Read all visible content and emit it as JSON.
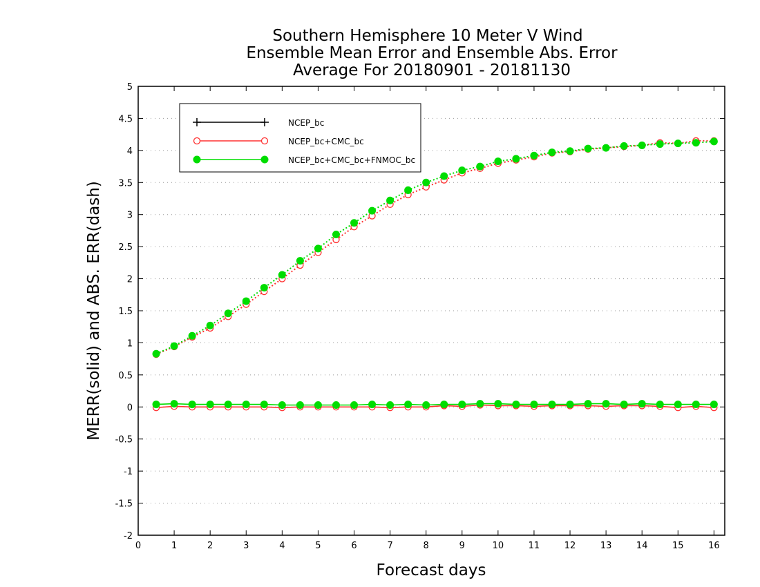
{
  "chart_data": {
    "type": "line",
    "title": [
      "Southern Hemisphere 10 Meter V Wind",
      "Ensemble Mean Error and Ensemble Abs. Error",
      "Average For 20180901 - 20181130"
    ],
    "xlabel": "Forecast days",
    "ylabel": "MERR(solid) and ABS. ERR(dash)",
    "xlim": [
      0,
      16.3
    ],
    "ylim": [
      -2,
      5
    ],
    "xticks": [
      "0",
      "1",
      "2",
      "3",
      "4",
      "5",
      "6",
      "7",
      "8",
      "9",
      "10",
      "11",
      "12",
      "13",
      "14",
      "15",
      "16"
    ],
    "yticks": [
      "5",
      "4.5",
      "4",
      "3.5",
      "3",
      "2.5",
      "2",
      "1.5",
      "1",
      "0.5",
      "0",
      "-0.5",
      "-1",
      "-1.5",
      "-2"
    ],
    "grid": true,
    "legend_position": "top-left",
    "x": [
      0.5,
      1,
      1.5,
      2,
      2.5,
      3,
      3.5,
      4,
      4.5,
      5,
      5.5,
      6,
      6.5,
      7,
      7.5,
      8,
      8.5,
      9,
      9.5,
      10,
      10.5,
      11,
      11.5,
      12,
      12.5,
      13,
      13.5,
      14,
      14.5,
      15,
      15.5,
      16
    ],
    "series": [
      {
        "name": "NCEP_bc",
        "color": "#000000",
        "marker": "plus",
        "merr": [],
        "abserr": []
      },
      {
        "name": "NCEP_bc+CMC_bc",
        "color": "#ff3030",
        "marker": "open-circle",
        "merr": [
          -0.01,
          0.01,
          0.0,
          0.0,
          0.0,
          0.0,
          0.0,
          -0.01,
          0.0,
          0.0,
          0.0,
          0.0,
          0.0,
          -0.01,
          0.0,
          0.0,
          0.02,
          0.01,
          0.03,
          0.02,
          0.02,
          0.01,
          0.02,
          0.02,
          0.02,
          0.01,
          0.02,
          0.02,
          0.01,
          -0.01,
          0.01,
          -0.01
        ],
        "abserr": [
          0.82,
          0.94,
          1.09,
          1.23,
          1.41,
          1.6,
          1.8,
          2.0,
          2.21,
          2.41,
          2.61,
          2.81,
          2.98,
          3.16,
          3.31,
          3.43,
          3.54,
          3.65,
          3.72,
          3.8,
          3.85,
          3.9,
          3.96,
          3.98,
          4.02,
          4.04,
          4.06,
          4.08,
          4.12,
          4.11,
          4.15,
          4.15
        ]
      },
      {
        "name": "NCEP_bc+CMC_bc+FNMOC_bc",
        "color": "#00dd00",
        "marker": "filled-circle",
        "merr": [
          0.04,
          0.05,
          0.04,
          0.04,
          0.04,
          0.04,
          0.04,
          0.03,
          0.03,
          0.03,
          0.03,
          0.03,
          0.04,
          0.03,
          0.04,
          0.03,
          0.04,
          0.04,
          0.05,
          0.05,
          0.04,
          0.04,
          0.04,
          0.04,
          0.05,
          0.05,
          0.04,
          0.05,
          0.04,
          0.04,
          0.04,
          0.04
        ],
        "abserr": [
          0.83,
          0.95,
          1.11,
          1.27,
          1.46,
          1.65,
          1.86,
          2.06,
          2.28,
          2.47,
          2.69,
          2.87,
          3.06,
          3.22,
          3.38,
          3.5,
          3.6,
          3.69,
          3.75,
          3.83,
          3.87,
          3.92,
          3.97,
          3.99,
          4.03,
          4.04,
          4.07,
          4.08,
          4.1,
          4.11,
          4.12,
          4.14
        ]
      }
    ]
  }
}
